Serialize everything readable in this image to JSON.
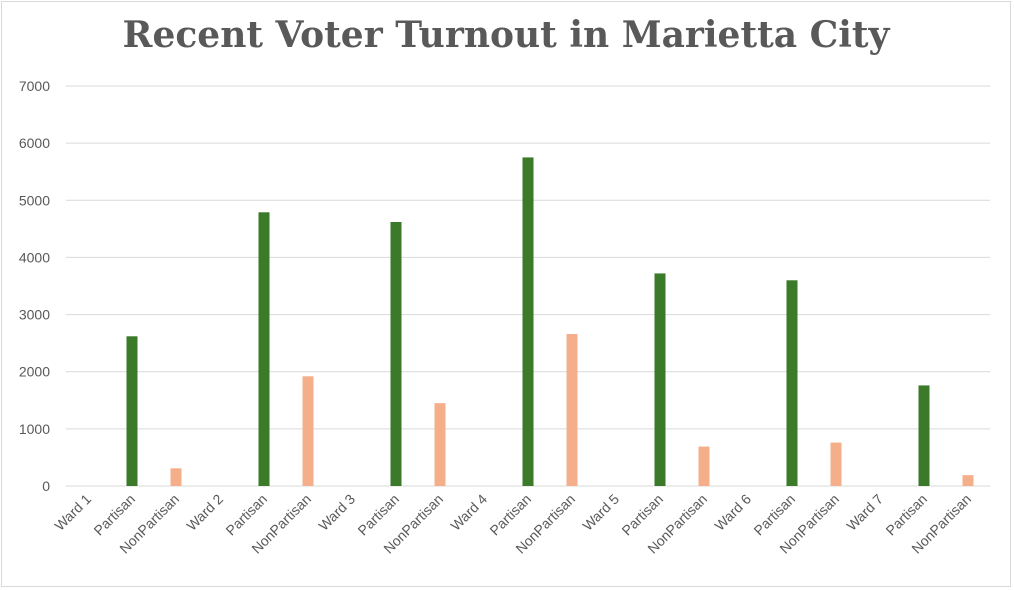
{
  "chart_data": {
    "type": "bar",
    "title": "Recent Voter Turnout in Marietta City",
    "xlabel": "",
    "ylabel": "",
    "ylim": [
      0,
      7000
    ],
    "yticks": [
      0,
      1000,
      2000,
      3000,
      4000,
      5000,
      6000,
      7000
    ],
    "grid": true,
    "legend": "none",
    "categories": [
      "Ward 1",
      "Partisan",
      "NonPartisan",
      "Ward 2",
      "Partisan",
      "NonPartisan",
      "Ward 3",
      "Partisan",
      "NonPartisan",
      "Ward 4",
      "Partisan",
      "NonPartisan",
      "Ward 5",
      "Partisan",
      "NonPartisan",
      "Ward 6",
      "Partisan",
      "NonPartisan",
      "Ward 7",
      "Partisan",
      "NonPartisan"
    ],
    "values": [
      0,
      2620,
      310,
      0,
      4790,
      1920,
      0,
      4620,
      1450,
      0,
      5750,
      2660,
      0,
      3720,
      690,
      0,
      3600,
      760,
      0,
      1760,
      190
    ],
    "colors": {
      "Partisan": "#3a7a28",
      "NonPartisan": "#f4ae89"
    }
  }
}
